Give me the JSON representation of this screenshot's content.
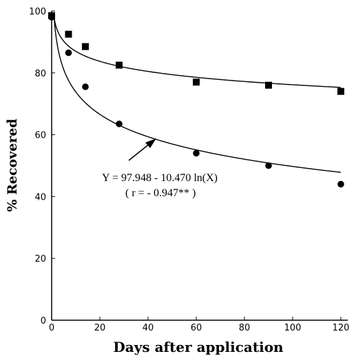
{
  "chart_data": {
    "type": "scatter",
    "title": "",
    "xlabel": "Days after application",
    "ylabel": "% Recovered",
    "xlim": [
      0,
      120
    ],
    "ylim": [
      0,
      100
    ],
    "xticks": [
      0,
      20,
      40,
      60,
      80,
      100,
      120
    ],
    "yticks": [
      0,
      20,
      40,
      60,
      80,
      100
    ],
    "grid": false,
    "series": [
      {
        "marker": "square",
        "x": [
          0,
          7,
          14,
          28,
          60,
          90,
          120
        ],
        "y": [
          98.5,
          92.5,
          88.5,
          82.5,
          77.0,
          76.0,
          74.0
        ],
        "fit": {
          "type": "log",
          "a": 97.8,
          "b": -4.7
        }
      },
      {
        "marker": "circle",
        "x": [
          0,
          7,
          14,
          28,
          60,
          90,
          120
        ],
        "y": [
          98.0,
          86.5,
          75.5,
          63.5,
          54.0,
          50.0,
          44.0
        ],
        "fit": {
          "type": "log",
          "a": 97.948,
          "b": -10.47
        }
      }
    ],
    "annotation": {
      "equation": "Y = 97.948 - 10.470 ln(X)",
      "r_value": "( r = - 0.947** )"
    }
  }
}
